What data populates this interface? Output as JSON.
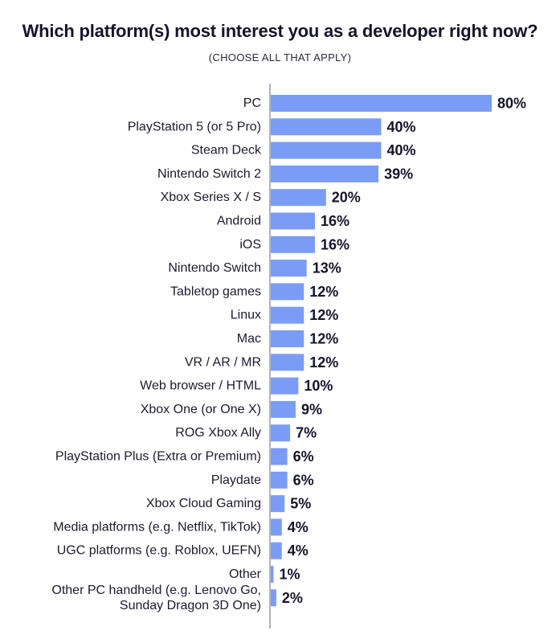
{
  "chart_data": {
    "type": "bar",
    "orientation": "horizontal",
    "title": "Which platform(s) most interest you as a developer right now?",
    "subtitle": "(CHOOSE ALL THAT APPLY)",
    "categories": [
      [
        "PC"
      ],
      [
        "PlayStation 5 (or 5 Pro)"
      ],
      [
        "Steam Deck"
      ],
      [
        "Nintendo Switch 2"
      ],
      [
        "Xbox Series X / S"
      ],
      [
        "Android"
      ],
      [
        "iOS"
      ],
      [
        "Nintendo Switch"
      ],
      [
        "Tabletop games"
      ],
      [
        "Linux"
      ],
      [
        "Mac"
      ],
      [
        "VR / AR / MR"
      ],
      [
        "Web browser / HTML"
      ],
      [
        "Xbox One (or One X)"
      ],
      [
        "ROG Xbox Ally"
      ],
      [
        "PlayStation Plus (Extra or Premium)"
      ],
      [
        "Playdate"
      ],
      [
        "Xbox Cloud Gaming"
      ],
      [
        "Media platforms (e.g. Netflix, TikTok)"
      ],
      [
        "UGC platforms (e.g. Roblox, UEFN)"
      ],
      [
        "Other"
      ],
      [
        "Other PC handheld (e.g. Lenovo Go,",
        "Sunday Dragon 3D One)"
      ]
    ],
    "values": [
      80,
      40,
      40,
      39,
      20,
      16,
      16,
      13,
      12,
      12,
      12,
      12,
      10,
      9,
      7,
      6,
      6,
      5,
      4,
      4,
      1,
      2
    ],
    "value_labels": [
      "80%",
      "40%",
      "40%",
      "39%",
      "20%",
      "16%",
      "16%",
      "13%",
      "12%",
      "12%",
      "12%",
      "12%",
      "10%",
      "9%",
      "7%",
      "6%",
      "6%",
      "5%",
      "4%",
      "4%",
      "1%",
      "2%"
    ],
    "xlim": [
      0,
      80
    ],
    "bar_color": "#7b9cf5",
    "axis_color": "#9a9aa5",
    "grid": false,
    "legend": "none"
  }
}
